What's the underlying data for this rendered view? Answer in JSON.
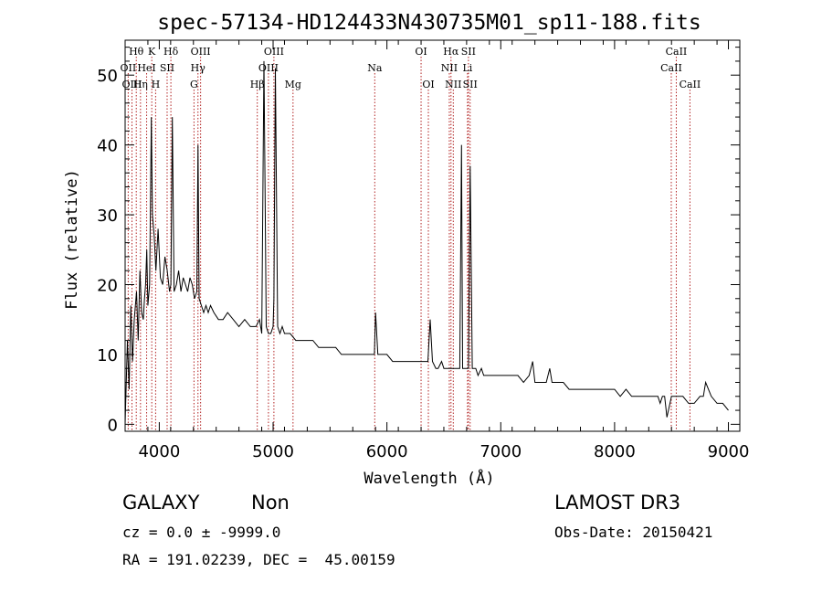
{
  "chart_data": {
    "type": "line",
    "title": "spec-57134-HD124433N430735M01_sp11-188.fits",
    "xlabel": "Wavelength (Å)",
    "ylabel": "Flux (relative)",
    "xlim": [
      3700,
      9100
    ],
    "ylim": [
      -1,
      55
    ],
    "x_ticks": [
      4000,
      5000,
      6000,
      7000,
      8000,
      9000
    ],
    "x_tick_labels": [
      "4000",
      "5000",
      "6000",
      "7000",
      "8000",
      "9000"
    ],
    "y_ticks": [
      0,
      10,
      20,
      30,
      40,
      50
    ],
    "y_tick_labels": [
      "0",
      "10",
      "20",
      "30",
      "40",
      "50"
    ],
    "series": [
      {
        "name": "spectrum",
        "x": [
          3700,
          3720,
          3735,
          3750,
          3765,
          3780,
          3800,
          3815,
          3830,
          3845,
          3860,
          3870,
          3880,
          3890,
          3900,
          3915,
          3930,
          3940,
          3955,
          3970,
          3990,
          4010,
          4030,
          4050,
          4070,
          4090,
          4102,
          4115,
          4130,
          4150,
          4170,
          4190,
          4210,
          4230,
          4250,
          4270,
          4290,
          4310,
          4330,
          4340,
          4350,
          4370,
          4390,
          4410,
          4430,
          4450,
          4480,
          4520,
          4560,
          4600,
          4650,
          4700,
          4750,
          4800,
          4850,
          4880,
          4900,
          4920,
          4940,
          4959,
          4980,
          5000,
          5007,
          5020,
          5040,
          5060,
          5080,
          5100,
          5150,
          5200,
          5250,
          5300,
          5350,
          5400,
          5450,
          5500,
          5550,
          5600,
          5650,
          5700,
          5750,
          5800,
          5850,
          5890,
          5900,
          5920,
          5950,
          5970,
          6000,
          6050,
          6100,
          6150,
          6200,
          6250,
          6300,
          6340,
          6360,
          6380,
          6400,
          6430,
          6450,
          6480,
          6500,
          6530,
          6550,
          6570,
          6580,
          6600,
          6620,
          6640,
          6655,
          6665,
          6680,
          6700,
          6716,
          6731,
          6750,
          6780,
          6800,
          6830,
          6850,
          6900,
          6950,
          7000,
          7050,
          7100,
          7150,
          7200,
          7250,
          7280,
          7300,
          7350,
          7400,
          7430,
          7450,
          7500,
          7550,
          7600,
          7650,
          7700,
          7750,
          7800,
          7850,
          7900,
          7950,
          8000,
          8050,
          8100,
          8150,
          8200,
          8250,
          8300,
          8350,
          8380,
          8400,
          8420,
          8440,
          8460,
          8500,
          8550,
          8600,
          8650,
          8700,
          8750,
          8780,
          8800,
          8850,
          8900,
          8950,
          9000
        ],
        "y": [
          0,
          12,
          5,
          17,
          9,
          15,
          19,
          12,
          22,
          16,
          15,
          18,
          20,
          25,
          17,
          20,
          44,
          30,
          27,
          22,
          28,
          21,
          20,
          24,
          22,
          19,
          20,
          44,
          19,
          20,
          22,
          19,
          21,
          20,
          19,
          21,
          20,
          18,
          19,
          40,
          18,
          17,
          16,
          17,
          16,
          17,
          16,
          15,
          15,
          16,
          15,
          14,
          15,
          14,
          14,
          15,
          13,
          52,
          14,
          13,
          13,
          14,
          18,
          51,
          14,
          13,
          14,
          13,
          13,
          12,
          12,
          12,
          12,
          11,
          11,
          11,
          11,
          10,
          10,
          10,
          10,
          10,
          10,
          10,
          16,
          10,
          10,
          10,
          10,
          9,
          9,
          9,
          9,
          9,
          9,
          9,
          9,
          15,
          9,
          8,
          8,
          9,
          8,
          8,
          8,
          8,
          8,
          8,
          8,
          8,
          40,
          8,
          8,
          8,
          8,
          37,
          8,
          8,
          7,
          8,
          7,
          7,
          7,
          7,
          7,
          7,
          7,
          6,
          7,
          9,
          6,
          6,
          6,
          8,
          6,
          6,
          6,
          5,
          5,
          5,
          5,
          5,
          5,
          5,
          5,
          5,
          4,
          5,
          4,
          4,
          4,
          4,
          4,
          4,
          3,
          4,
          4,
          1,
          4,
          4,
          4,
          3,
          3,
          4,
          4,
          6,
          4,
          3,
          3,
          2
        ]
      }
    ],
    "line_markers": [
      {
        "label": "Hθ",
        "x": 3798,
        "row": 0
      },
      {
        "label": "K",
        "x": 3934,
        "row": 0
      },
      {
        "label": "Hδ",
        "x": 4102,
        "row": 0
      },
      {
        "label": "OIII",
        "x": 4363,
        "row": 0
      },
      {
        "label": "OIII",
        "x": 5007,
        "row": 0
      },
      {
        "label": "OI",
        "x": 6300,
        "row": 0
      },
      {
        "label": "Hα",
        "x": 6563,
        "row": 0
      },
      {
        "label": "SII",
        "x": 6716,
        "row": 0
      },
      {
        "label": "CaII",
        "x": 8542,
        "row": 0
      },
      {
        "label": "OII",
        "x": 3727,
        "row": 1
      },
      {
        "label": "HeI",
        "x": 3889,
        "row": 1
      },
      {
        "label": "SII",
        "x": 4069,
        "row": 1
      },
      {
        "label": "Hγ",
        "x": 4340,
        "row": 1
      },
      {
        "label": "OIII",
        "x": 4959,
        "row": 1
      },
      {
        "label": "Na",
        "x": 5893,
        "row": 1
      },
      {
        "label": "NII",
        "x": 6548,
        "row": 1
      },
      {
        "label": "Li",
        "x": 6708,
        "row": 1
      },
      {
        "label": "CaII",
        "x": 8498,
        "row": 1
      },
      {
        "label": "OIII",
        "x": 3760,
        "row": 2
      },
      {
        "label": "Hη",
        "x": 3835,
        "row": 2
      },
      {
        "label": "H",
        "x": 3968,
        "row": 2
      },
      {
        "label": "G",
        "x": 4305,
        "row": 2
      },
      {
        "label": "Hβ",
        "x": 4861,
        "row": 2
      },
      {
        "label": "Mg",
        "x": 5175,
        "row": 2
      },
      {
        "label": "OI",
        "x": 6364,
        "row": 2
      },
      {
        "label": "NII",
        "x": 6583,
        "row": 2
      },
      {
        "label": "SII",
        "x": 6731,
        "row": 2
      },
      {
        "label": "CaII",
        "x": 8662,
        "row": 2
      }
    ]
  },
  "info": {
    "class": "GALAXY",
    "subclass": "Non",
    "survey": "LAMOST DR3",
    "cz": "cz = 0.0 ± -9999.0",
    "obs_date": "Obs-Date: 20150421",
    "radec": "RA = 191.02239, DEC =  45.00159"
  },
  "colors": {
    "spectrum": "#000000",
    "marker": "#b22222",
    "axis": "#000000"
  }
}
